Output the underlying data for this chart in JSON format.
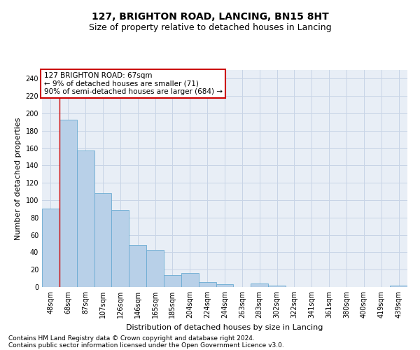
{
  "title": "127, BRIGHTON ROAD, LANCING, BN15 8HT",
  "subtitle": "Size of property relative to detached houses in Lancing",
  "xlabel": "Distribution of detached houses by size in Lancing",
  "ylabel": "Number of detached properties",
  "bar_color": "#b8d0e8",
  "bar_edge_color": "#6aabd2",
  "background_color": "#e8eef6",
  "categories": [
    "48sqm",
    "68sqm",
    "87sqm",
    "107sqm",
    "126sqm",
    "146sqm",
    "165sqm",
    "185sqm",
    "204sqm",
    "224sqm",
    "244sqm",
    "263sqm",
    "283sqm",
    "302sqm",
    "322sqm",
    "341sqm",
    "361sqm",
    "380sqm",
    "400sqm",
    "419sqm",
    "439sqm"
  ],
  "values": [
    90,
    193,
    157,
    108,
    89,
    48,
    43,
    14,
    16,
    6,
    3,
    0,
    4,
    2,
    0,
    0,
    0,
    0,
    0,
    0,
    2
  ],
  "ylim": [
    0,
    250
  ],
  "yticks": [
    0,
    20,
    40,
    60,
    80,
    100,
    120,
    140,
    160,
    180,
    200,
    220,
    240
  ],
  "vline_x_index": 1,
  "annotation_text": "127 BRIGHTON ROAD: 67sqm\n← 9% of detached houses are smaller (71)\n90% of semi-detached houses are larger (684) →",
  "annotation_box_color": "#ffffff",
  "annotation_border_color": "#cc0000",
  "footer_line1": "Contains HM Land Registry data © Crown copyright and database right 2024.",
  "footer_line2": "Contains public sector information licensed under the Open Government Licence v3.0.",
  "grid_color": "#c8d4e6",
  "title_fontsize": 10,
  "subtitle_fontsize": 9,
  "axis_label_fontsize": 8,
  "tick_fontsize": 7,
  "annotation_fontsize": 7.5,
  "footer_fontsize": 6.5
}
